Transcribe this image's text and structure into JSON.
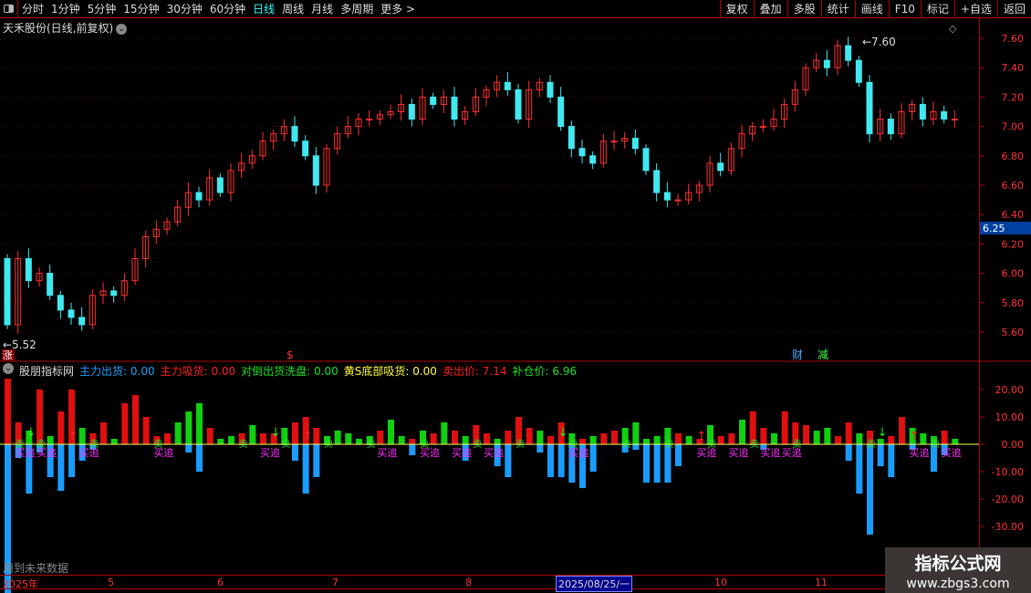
{
  "toolbar": {
    "periods": [
      "分时",
      "1分钟",
      "5分钟",
      "15分钟",
      "30分钟",
      "60分钟",
      "日线",
      "周线",
      "月线",
      "多周期",
      "更多 >"
    ],
    "active_period": "日线",
    "buttons": [
      "复权",
      "叠加",
      "多股",
      "统计",
      "画线",
      "F10",
      "标记",
      "+自选",
      "返回"
    ]
  },
  "stock": {
    "title": "天禾股份(日线,前复权)",
    "high_label": "7.60",
    "low_label": "5.52",
    "current_price": "6.25",
    "markers": {
      "zhang": "涨",
      "dollar": "$",
      "cai": "财",
      "jian": "减"
    }
  },
  "indicator": {
    "name": "股朋指标网",
    "items": [
      {
        "label": "主力出货:",
        "value": "0.00",
        "color": "#1ea0ff"
      },
      {
        "label": "主力吸货:",
        "value": "0.00",
        "color": "#ff2020"
      },
      {
        "label": "对倒出货洗盘:",
        "value": "0.00",
        "color": "#20e020"
      },
      {
        "label": "黄S底部吸货:",
        "value": "0.00",
        "color": "#ffff40"
      },
      {
        "label": "卖出价:",
        "value": "7.14",
        "color": "#ff2020"
      },
      {
        "label": "补仓价:",
        "value": "6.96",
        "color": "#20e020"
      }
    ],
    "sell_label": "卖",
    "buy_label": "买追",
    "future_note": "用到未来数据"
  },
  "price_axis": [
    "7.60",
    "7.40",
    "7.20",
    "7.00",
    "6.80",
    "6.60",
    "6.40",
    "6.20",
    "6.00",
    "5.80",
    "5.60"
  ],
  "ind_axis": [
    "20.00",
    "10.00",
    "0.00",
    "-10.00",
    "-20.00",
    "-30.00"
  ],
  "dates": {
    "labels": [
      "2025年",
      "5",
      "6",
      "7",
      "8",
      "10",
      "11"
    ],
    "cursor": "2025/08/25/一"
  },
  "watermark": {
    "line1": "指标公式网",
    "line2": "www.zbgs3.com"
  },
  "colors": {
    "up": "#ff3030",
    "down": "#40e8f0",
    "ind_red": "#e01010",
    "ind_green": "#10d010",
    "ind_blue": "#1a9cff",
    "grid": "#b00000"
  },
  "chart_data": {
    "type": "candlestick",
    "first_open": 6.1,
    "closes": [
      5.65,
      6.1,
      5.95,
      6.0,
      5.85,
      5.75,
      5.7,
      5.65,
      5.85,
      5.88,
      5.85,
      5.95,
      6.1,
      6.25,
      6.3,
      6.35,
      6.45,
      6.55,
      6.5,
      6.65,
      6.55,
      6.7,
      6.75,
      6.8,
      6.9,
      6.95,
      7.0,
      6.9,
      6.8,
      6.6,
      6.85,
      6.95,
      7.0,
      7.05,
      7.05,
      7.08,
      7.1,
      7.15,
      7.05,
      7.2,
      7.15,
      7.2,
      7.05,
      7.1,
      7.2,
      7.25,
      7.3,
      7.25,
      7.05,
      7.25,
      7.3,
      7.2,
      7.0,
      6.85,
      6.8,
      6.75,
      6.9,
      6.9,
      6.92,
      6.85,
      6.7,
      6.55,
      6.5,
      6.5,
      6.55,
      6.6,
      6.75,
      6.7,
      6.85,
      6.95,
      7.0,
      7.0,
      7.05,
      7.15,
      7.25,
      7.4,
      7.45,
      7.4,
      7.55,
      7.45,
      7.3,
      6.95,
      7.05,
      6.95,
      7.1,
      7.15,
      7.05,
      7.1,
      7.05,
      7.05
    ],
    "ylim": [
      5.45,
      7.65
    ],
    "ind_up": [
      24,
      8,
      5,
      20,
      3,
      12,
      20,
      6,
      4,
      8,
      2,
      15,
      18,
      10,
      3,
      4,
      8,
      12,
      15,
      6,
      2,
      3,
      4,
      7,
      4,
      4,
      6,
      8,
      10,
      6,
      3,
      5,
      4,
      2,
      3,
      5,
      9,
      3,
      2,
      5,
      4,
      8,
      5,
      3,
      7,
      4,
      2,
      5,
      10,
      6,
      5,
      3,
      8,
      4,
      2,
      3,
      4,
      5,
      6,
      8,
      2,
      3,
      6,
      4,
      3,
      2,
      7,
      3,
      4,
      9,
      12,
      6,
      4,
      12,
      8,
      7,
      5,
      6,
      3,
      8,
      4,
      5,
      2,
      3,
      10,
      6,
      4,
      3,
      5,
      2
    ],
    "ind_up_colors": "rrgrgrrgrrgrrrrrgggrggrgrrgrrrgggggrggrgrgrgrrgrrrgrrgrgrrgggggrgrgrrgrrgrrrggrrgrgrrgggrg",
    "ind_down": [
      60,
      5,
      18,
      3,
      12,
      17,
      12,
      6,
      2,
      0,
      0,
      0,
      0,
      0,
      0,
      0,
      0,
      3,
      10,
      0,
      0,
      0,
      0,
      0,
      0,
      0,
      0,
      6,
      18,
      12,
      0,
      0,
      0,
      0,
      0,
      0,
      0,
      0,
      4,
      0,
      0,
      0,
      0,
      6,
      0,
      0,
      8,
      12,
      0,
      0,
      3,
      12,
      12,
      14,
      16,
      10,
      0,
      0,
      3,
      2,
      14,
      14,
      14,
      8,
      0,
      0,
      0,
      0,
      0,
      0,
      0,
      2,
      0,
      0,
      0,
      0,
      0,
      0,
      0,
      6,
      18,
      33,
      8,
      12,
      0,
      2,
      0,
      10,
      4,
      0
    ],
    "ind_ylim": [
      -35,
      25
    ],
    "sell_idx": [
      1,
      3,
      8,
      14,
      22,
      26,
      30,
      34,
      39,
      44,
      48,
      53,
      58,
      62,
      66,
      70,
      74,
      81,
      87
    ],
    "buy_idx": [
      1,
      3,
      7,
      14,
      24,
      35,
      39,
      42,
      45,
      53,
      65,
      68,
      71,
      73,
      85,
      88
    ],
    "arrows_up": [
      6,
      28,
      65,
      85
    ],
    "arrows_down": [
      2,
      25,
      52,
      82
    ]
  }
}
